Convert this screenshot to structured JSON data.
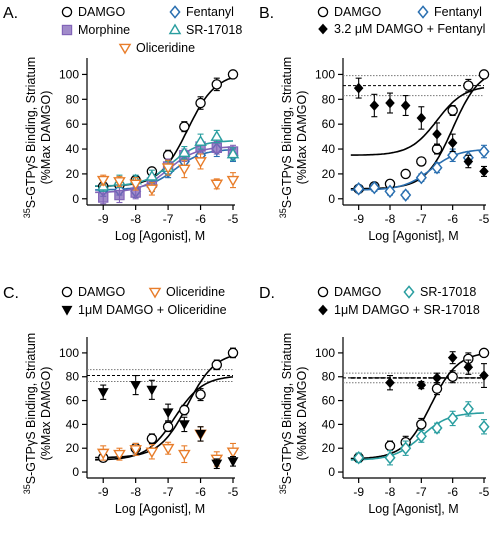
{
  "figure": {
    "yaxis_label": "35S-GTPγS Binding, Striatum (%Max DAMGO)",
    "yaxis_label_sup": "35",
    "yaxis_label_rest": "S-GTPγS Binding, Striatum",
    "yaxis_label_line2": "(%Max DAMGO)",
    "xaxis_label": "Log [Agonist], M"
  },
  "chart_data": [
    {
      "panel": "A.",
      "type": "scatter",
      "xlabel": "Log [Agonist], M",
      "ylabel": "35S-GTPγS Binding, Striatum (%Max DAMGO)",
      "xlim": [
        -9.5,
        -5
      ],
      "ylim": [
        -5,
        110
      ],
      "xticks": [
        -9,
        -8,
        -7,
        -6,
        -5
      ],
      "yticks": [
        0,
        20,
        40,
        60,
        80,
        100
      ],
      "series": [
        {
          "name": "DAMGO",
          "color": "#000000",
          "marker": "circle-open",
          "x": [
            -9,
            -8.5,
            -8,
            -7.5,
            -7,
            -6.5,
            -6,
            -5.5,
            -5
          ],
          "y": [
            10,
            11,
            15,
            22,
            35,
            58,
            77,
            92,
            100
          ],
          "err": [
            3,
            3,
            3,
            3,
            4,
            4,
            5,
            5,
            2
          ],
          "fit": {
            "bottom": 10,
            "top": 101,
            "ec50": -6.4
          }
        },
        {
          "name": "Fentanyl",
          "color": "#2a6fb0",
          "marker": "diamond-open",
          "x": [
            -9,
            -8.5,
            -8,
            -7.5,
            -7,
            -6.5,
            -6,
            -5.5,
            -5
          ],
          "y": [
            7,
            7,
            6,
            10,
            22,
            30,
            35,
            40,
            35
          ],
          "err": [
            5,
            4,
            5,
            4,
            5,
            5,
            5,
            6,
            5
          ],
          "fit": {
            "bottom": 7,
            "top": 40,
            "ec50": -6.8
          }
        },
        {
          "name": "Morphine",
          "color": "#8264b8",
          "marker": "square-filled",
          "x": [
            -9,
            -8.5,
            -8,
            -7.5,
            -7,
            -6.5,
            -6,
            -5.5,
            -5
          ],
          "y": [
            1,
            3,
            5,
            13,
            26,
            35,
            42,
            41,
            38
          ],
          "err": [
            5,
            6,
            5,
            5,
            6,
            5,
            5,
            5,
            5
          ],
          "fit": {
            "bottom": 5,
            "top": 42,
            "ec50": -7.0
          }
        },
        {
          "name": "SR-17018",
          "color": "#2a9ea0",
          "marker": "triangle-open",
          "x": [
            -9,
            -8.5,
            -8,
            -7.5,
            -7,
            -6.5,
            -6,
            -5.5,
            -5
          ],
          "y": [
            10,
            14,
            15,
            18,
            25,
            37,
            46,
            50,
            36
          ],
          "err": [
            4,
            5,
            4,
            5,
            5,
            5,
            6,
            5,
            5
          ],
          "fit": {
            "bottom": 10,
            "top": 47,
            "ec50": -6.9
          }
        },
        {
          "name": "Oliceridine",
          "color": "#e87d2a",
          "marker": "triangle-down-open",
          "x": [
            -9,
            -8.5,
            -8,
            -7.5,
            -7,
            -6.5,
            -6,
            -5.5,
            -5
          ],
          "y": [
            15,
            14,
            12,
            8,
            25,
            24,
            30,
            12,
            15
          ],
          "err": [
            4,
            4,
            5,
            5,
            6,
            7,
            6,
            4,
            6
          ],
          "fit": null
        }
      ]
    },
    {
      "panel": "B.",
      "type": "scatter",
      "xlabel": "Log [Agonist], M",
      "ylabel": "35S-GTPγS Binding, Striatum (%Max DAMGO)",
      "xlim": [
        -9.5,
        -5
      ],
      "ylim": [
        -5,
        110
      ],
      "xticks": [
        -9,
        -8,
        -7,
        -6,
        -5
      ],
      "yticks": [
        0,
        20,
        40,
        60,
        80,
        100
      ],
      "reference_lines": [
        99,
        91,
        83
      ],
      "series": [
        {
          "name": "DAMGO",
          "color": "#000000",
          "marker": "circle-open",
          "x": [
            -9,
            -8.5,
            -8,
            -7.5,
            -7,
            -6.5,
            -6,
            -5.5,
            -5
          ],
          "y": [
            8,
            10,
            12,
            20,
            30,
            40,
            71,
            91,
            100
          ],
          "err": [
            3,
            3,
            3,
            3,
            3,
            4,
            4,
            5,
            2
          ],
          "fit": {
            "bottom": 8,
            "top": 105,
            "ec50": -6.0
          }
        },
        {
          "name": "Fentanyl",
          "color": "#2a6fb0",
          "marker": "diamond-open",
          "x": [
            -9,
            -8.5,
            -8,
            -7.5,
            -7,
            -6.5,
            -6,
            -5.5,
            -5
          ],
          "y": [
            8,
            9,
            6,
            3,
            17,
            25,
            35,
            33,
            38
          ],
          "err": [
            3,
            3,
            3,
            3,
            3,
            4,
            5,
            5,
            5
          ],
          "fit": {
            "bottom": 7,
            "top": 40,
            "ec50": -6.7
          }
        },
        {
          "name": "3.2 μM DAMGO + Fentanyl",
          "color": "#000000",
          "marker": "diamond-filled",
          "x": [
            -9,
            -8.5,
            -8,
            -7.5,
            -7,
            -6.5,
            -6,
            -5.5,
            -5
          ],
          "y": [
            89,
            75,
            77,
            75,
            65,
            52,
            45,
            30,
            22
          ],
          "err": [
            8,
            9,
            8,
            8,
            9,
            9,
            7,
            5,
            4
          ],
          "fit": {
            "bottom": 35,
            "top": 91,
            "ec50": -6.5
          }
        }
      ]
    },
    {
      "panel": "C.",
      "type": "scatter",
      "xlabel": "Log [Agonist], M",
      "ylabel": "35S-GTPγS Binding, Striatum (%Max DAMGO)",
      "xlim": [
        -9.5,
        -5
      ],
      "ylim": [
        -5,
        110
      ],
      "xticks": [
        -9,
        -8,
        -7,
        -6,
        -5
      ],
      "yticks": [
        0,
        20,
        40,
        60,
        80,
        100
      ],
      "reference_lines": [
        86,
        81,
        76
      ],
      "series": [
        {
          "name": "DAMGO",
          "color": "#000000",
          "marker": "circle-open",
          "x": [
            -9,
            -8,
            -7.5,
            -7,
            -6.5,
            -6,
            -5.5,
            -5
          ],
          "y": [
            12,
            20,
            28,
            38,
            52,
            65,
            90,
            100
          ],
          "err": [
            3,
            4,
            4,
            4,
            4,
            5,
            4,
            4
          ],
          "fit": {
            "bottom": 12,
            "top": 101,
            "ec50": -6.4
          }
        },
        {
          "name": "Oliceridine",
          "color": "#e87d2a",
          "marker": "triangle-down-open",
          "x": [
            -9,
            -8.5,
            -8,
            -7.5,
            -7,
            -6.5,
            -6,
            -5.5,
            -5
          ],
          "y": [
            16,
            15,
            19,
            17,
            20,
            15,
            32,
            11,
            17
          ],
          "err": [
            6,
            5,
            5,
            6,
            5,
            7,
            6,
            6,
            7
          ],
          "fit": null
        },
        {
          "name": "1μM DAMGO + Oliceridine",
          "color": "#000000",
          "marker": "triangle-down-filled",
          "x": [
            -9,
            -8,
            -7.5,
            -7,
            -6.5,
            -6,
            -5.5,
            -5
          ],
          "y": [
            67,
            73,
            69,
            50,
            40,
            32,
            7,
            9
          ],
          "err": [
            6,
            8,
            8,
            7,
            6,
            6,
            4,
            4
          ],
          "fit": {
            "bottom": 10,
            "top": 81,
            "ec50": -6.8
          }
        }
      ]
    },
    {
      "panel": "D.",
      "type": "scatter",
      "xlabel": "Log [Agonist], M",
      "ylabel": "35S-GTPγS Binding, Striatum (%Max DAMGO)",
      "xlim": [
        -9.5,
        -5
      ],
      "ylim": [
        -5,
        110
      ],
      "xticks": [
        -9,
        -8,
        -7,
        -6,
        -5
      ],
      "yticks": [
        0,
        20,
        40,
        60,
        80,
        100
      ],
      "reference_lines": [
        83,
        79,
        75
      ],
      "series": [
        {
          "name": "DAMGO",
          "color": "#000000",
          "marker": "circle-open",
          "x": [
            -9,
            -8,
            -7.5,
            -7,
            -6.5,
            -6,
            -5.5,
            -5
          ],
          "y": [
            12,
            22,
            25,
            40,
            70,
            80,
            95,
            100
          ],
          "err": [
            3,
            4,
            5,
            5,
            5,
            5,
            5,
            3
          ],
          "fit": {
            "bottom": 11,
            "top": 101,
            "ec50": -6.7
          }
        },
        {
          "name": "SR-17018",
          "color": "#2a9ea0",
          "marker": "diamond-open",
          "x": [
            -9,
            -8,
            -7.5,
            -7,
            -6.5,
            -6,
            -5.5,
            -5
          ],
          "y": [
            12,
            12,
            20,
            30,
            37,
            45,
            53,
            38
          ],
          "err": [
            4,
            6,
            6,
            5,
            4,
            6,
            6,
            6
          ],
          "fit": {
            "bottom": 10,
            "top": 50,
            "ec50": -7.0
          }
        },
        {
          "name": "1μM DAMGO + SR-17018",
          "color": "#000000",
          "marker": "diamond-filled",
          "x": [
            -8,
            -7,
            -6.5,
            -6,
            -5.5,
            -5
          ],
          "y": [
            75,
            73,
            79,
            96,
            88,
            81
          ],
          "err": [
            6,
            3,
            4,
            5,
            6,
            10
          ],
          "fit": {
            "bottom": 79,
            "top": 79,
            "ec50": -6.5
          }
        }
      ]
    }
  ],
  "legends": [
    {
      "items": [
        {
          "label": "DAMGO",
          "series": 0,
          "row": 0,
          "col": 0
        },
        {
          "label": "Fentanyl",
          "series": 1,
          "row": 0,
          "col": 1
        },
        {
          "label": "Morphine",
          "series": 2,
          "row": 1,
          "col": 0
        },
        {
          "label": "SR-17018",
          "series": 3,
          "row": 1,
          "col": 1
        },
        {
          "label": "Oliceridine",
          "series": 4,
          "row": 2,
          "col": 0.5
        }
      ]
    },
    {
      "items": [
        {
          "label": "DAMGO",
          "series": 0,
          "row": 0,
          "col": 0
        },
        {
          "label": "Fentanyl",
          "series": 1,
          "row": 0,
          "col": 1
        },
        {
          "label": "3.2 μM DAMGO + Fentanyl",
          "series": 2,
          "row": 1,
          "col": 0
        }
      ]
    },
    {
      "items": [
        {
          "label": "DAMGO",
          "series": 0,
          "row": 0,
          "col": 0
        },
        {
          "label": "Oliceridine",
          "series": 1,
          "row": 0,
          "col": 1
        },
        {
          "label": "1μM DAMGO + Oliceridine",
          "series": 2,
          "row": 1,
          "col": 0
        }
      ]
    },
    {
      "items": [
        {
          "label": "DAMGO",
          "series": 0,
          "row": 0,
          "col": 0
        },
        {
          "label": "SR-17018",
          "series": 1,
          "row": 0,
          "col": 1
        },
        {
          "label": "1μM DAMGO + SR-17018",
          "series": 2,
          "row": 1,
          "col": 0
        }
      ]
    }
  ]
}
